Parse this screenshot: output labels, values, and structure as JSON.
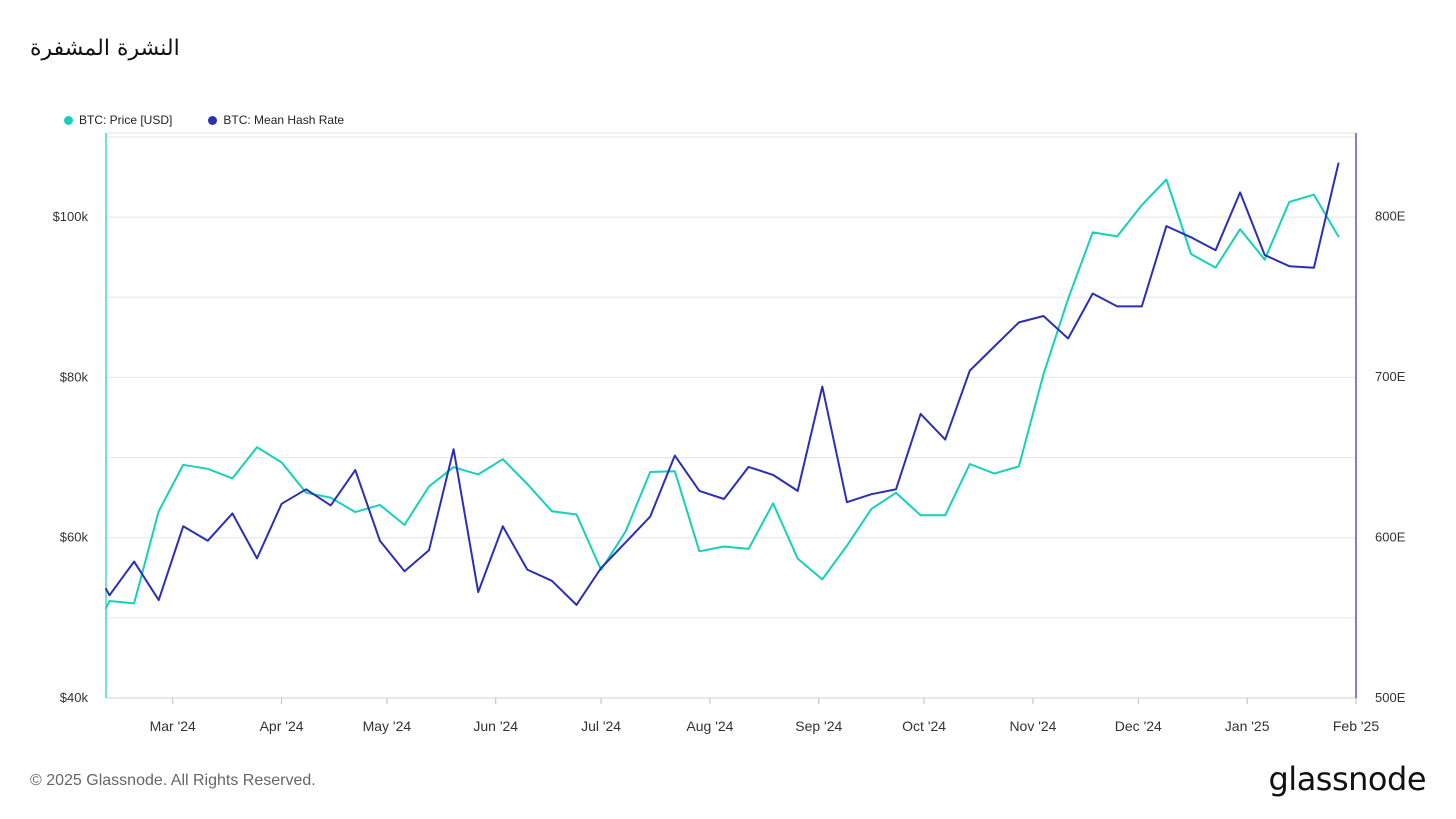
{
  "title": "النشرة المشفرة",
  "footer": "© 2025 Glassnode. All Rights Reserved.",
  "brand": "glassnode",
  "chart_data": {
    "type": "line",
    "title": "النشرة المشفرة",
    "legend_position": "top-left",
    "grid": true,
    "x_ticks": [
      "Mar '24",
      "Apr '24",
      "May '24",
      "Jun '24",
      "Jul '24",
      "Aug '24",
      "Sep '24",
      "Oct '24",
      "Nov '24",
      "Dec '24",
      "Jan '25",
      "Feb '25"
    ],
    "x_range": [
      "2024-02-11",
      "2025-02-01"
    ],
    "y_left": {
      "ticks": [
        "$40k",
        "$60k",
        "$80k",
        "$100k"
      ],
      "tick_values": [
        40000,
        60000,
        80000,
        100000
      ],
      "range": [
        40000,
        110500
      ]
    },
    "y_right": {
      "ticks": [
        "500E",
        "600E",
        "700E",
        "800E"
      ],
      "tick_values": [
        500,
        600,
        700,
        800
      ],
      "range": [
        500,
        852
      ]
    },
    "series": [
      {
        "name": "BTC: Price [USD]",
        "axis": "left",
        "color": "#16d1b8",
        "x": [
          "2024-02-11",
          "2024-02-12",
          "2024-02-19",
          "2024-02-26",
          "2024-03-04",
          "2024-03-11",
          "2024-03-18",
          "2024-03-25",
          "2024-04-01",
          "2024-04-08",
          "2024-04-15",
          "2024-04-22",
          "2024-04-29",
          "2024-05-06",
          "2024-05-13",
          "2024-05-20",
          "2024-05-27",
          "2024-06-03",
          "2024-06-10",
          "2024-06-17",
          "2024-06-24",
          "2024-07-01",
          "2024-07-08",
          "2024-07-15",
          "2024-07-22",
          "2024-07-29",
          "2024-08-05",
          "2024-08-12",
          "2024-08-19",
          "2024-08-26",
          "2024-09-02",
          "2024-09-09",
          "2024-09-16",
          "2024-09-23",
          "2024-09-30",
          "2024-10-07",
          "2024-10-14",
          "2024-10-21",
          "2024-10-28",
          "2024-11-04",
          "2024-11-11",
          "2024-11-18",
          "2024-11-25",
          "2024-12-02",
          "2024-12-09",
          "2024-12-16",
          "2024-12-23",
          "2024-12-30",
          "2025-01-06",
          "2025-01-13",
          "2025-01-20",
          "2025-01-27"
        ],
        "values": [
          51200,
          52100,
          51800,
          63300,
          69100,
          68600,
          67400,
          71300,
          69400,
          65600,
          65000,
          63200,
          64100,
          61600,
          66400,
          68800,
          67900,
          69800,
          66700,
          63300,
          62900,
          56000,
          60800,
          68200,
          68300,
          58300,
          58900,
          58600,
          64300,
          57400,
          54800,
          59000,
          63600,
          65600,
          62800,
          62800,
          69200,
          68000,
          68900,
          80400,
          89800,
          98100,
          97600,
          101500,
          104700,
          95400,
          93700,
          98500,
          94700,
          101900,
          102800,
          97600
        ]
      },
      {
        "name": "BTC: Mean Hash Rate",
        "axis": "right",
        "color": "#2b2fb3",
        "x": [
          "2024-02-11",
          "2024-02-12",
          "2024-02-19",
          "2024-02-26",
          "2024-03-04",
          "2024-03-11",
          "2024-03-18",
          "2024-03-25",
          "2024-04-01",
          "2024-04-08",
          "2024-04-15",
          "2024-04-22",
          "2024-04-29",
          "2024-05-06",
          "2024-05-13",
          "2024-05-20",
          "2024-05-27",
          "2024-06-03",
          "2024-06-10",
          "2024-06-17",
          "2024-06-24",
          "2024-07-01",
          "2024-07-08",
          "2024-07-15",
          "2024-07-22",
          "2024-07-29",
          "2024-08-05",
          "2024-08-12",
          "2024-08-19",
          "2024-08-26",
          "2024-09-02",
          "2024-09-09",
          "2024-09-16",
          "2024-09-23",
          "2024-09-30",
          "2024-10-07",
          "2024-10-14",
          "2024-10-21",
          "2024-10-28",
          "2024-11-04",
          "2024-11-11",
          "2024-11-18",
          "2024-11-25",
          "2024-12-02",
          "2024-12-09",
          "2024-12-16",
          "2024-12-23",
          "2024-12-30",
          "2025-01-06",
          "2025-01-13",
          "2025-01-20",
          "2025-01-27"
        ],
        "values": [
          568,
          564,
          585,
          561,
          607,
          598,
          615,
          587,
          621,
          630,
          620,
          642,
          598,
          579,
          592,
          655,
          566,
          607,
          580,
          573,
          558,
          581,
          597,
          613,
          651,
          629,
          624,
          644,
          639,
          629,
          694,
          622,
          627,
          630,
          677,
          661,
          704,
          719,
          734,
          738,
          724,
          752,
          744,
          744,
          794,
          787,
          779,
          815,
          776,
          769,
          768,
          833
        ]
      }
    ]
  }
}
